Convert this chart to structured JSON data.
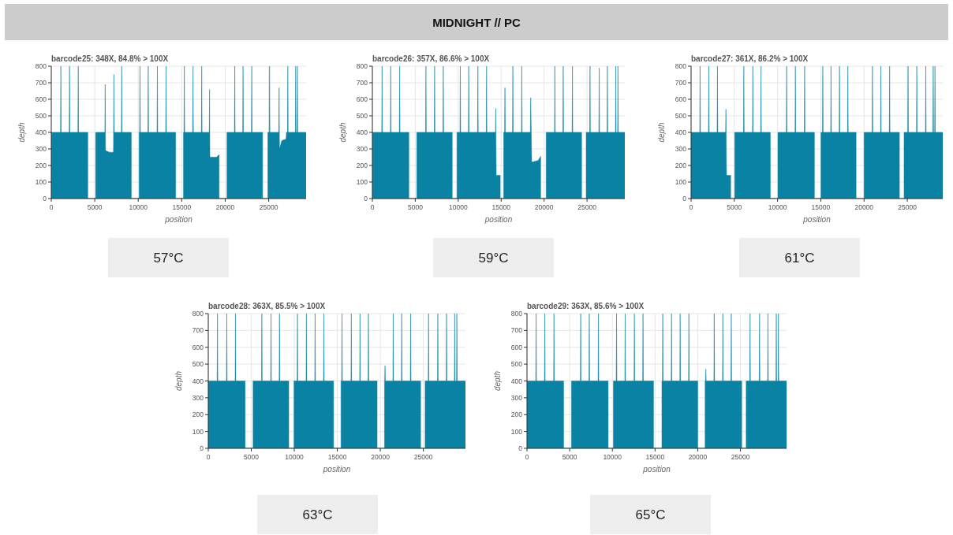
{
  "chart_data": [
    {
      "type": "other",
      "title": "MIDNIGHT // PC"
    },
    {
      "type": "area",
      "title": "barcode25: 348X, 84.8% > 100X",
      "xlabel": "position",
      "ylabel": "depth",
      "annotations": [
        "57°C"
      ],
      "color": "#0a82a3",
      "grid": true,
      "xlim": [
        0,
        29300
      ],
      "ylim": [
        0,
        800
      ],
      "xticks": [
        0,
        5000,
        10000,
        15000,
        20000,
        25000
      ],
      "yticks": [
        0,
        100,
        200,
        300,
        400,
        500,
        600,
        700,
        800
      ],
      "x": [
        0,
        1060,
        1100,
        1140,
        2060,
        2100,
        2140,
        3060,
        3100,
        3140,
        4200,
        4200,
        5100,
        5100,
        6160,
        6200,
        6240,
        6700,
        7150,
        7200,
        7240,
        8060,
        8100,
        8140,
        9200,
        9200,
        10100,
        10100,
        10160,
        10200,
        10240,
        11110,
        11150,
        11190,
        12160,
        12200,
        12240,
        13160,
        13200,
        13240,
        14300,
        14300,
        15200,
        15200,
        15260,
        15300,
        15340,
        16260,
        16300,
        16340,
        17260,
        17300,
        17340,
        18160,
        18200,
        18240,
        19000,
        19300,
        19300,
        20200,
        20200,
        21060,
        21100,
        21140,
        22010,
        22050,
        22090,
        23010,
        23050,
        23090,
        24300,
        24300,
        24900,
        24900,
        25060,
        25100,
        25140,
        26160,
        26200,
        26240,
        26500,
        27000,
        27040,
        27160,
        27200,
        27240,
        28060,
        28100,
        28140,
        28260,
        28300,
        28340,
        29300
      ],
      "values": [
        400,
        400,
        800,
        400,
        400,
        800,
        400,
        400,
        800,
        400,
        400,
        0,
        0,
        400,
        400,
        690,
        290,
        280,
        280,
        750,
        400,
        400,
        800,
        400,
        400,
        0,
        0,
        400,
        400,
        800,
        400,
        400,
        800,
        400,
        400,
        800,
        400,
        400,
        800,
        400,
        400,
        0,
        0,
        400,
        400,
        800,
        400,
        400,
        800,
        400,
        400,
        800,
        400,
        400,
        660,
        250,
        250,
        265,
        0,
        0,
        400,
        400,
        800,
        400,
        400,
        800,
        400,
        400,
        800,
        400,
        400,
        0,
        0,
        400,
        400,
        800,
        400,
        400,
        670,
        300,
        350,
        360,
        400,
        400,
        800,
        400,
        400,
        800,
        400,
        400,
        800,
        400,
        400
      ]
    },
    {
      "type": "area",
      "title": "barcode26: 357X, 86.6% > 100X",
      "xlabel": "position",
      "ylabel": "depth",
      "annotations": [
        "59°C"
      ],
      "color": "#0a82a3",
      "grid": true,
      "xlim": [
        0,
        29400
      ],
      "ylim": [
        0,
        800
      ],
      "xticks": [
        0,
        5000,
        10000,
        15000,
        20000,
        25000
      ],
      "yticks": [
        0,
        100,
        200,
        300,
        400,
        500,
        600,
        700,
        800
      ],
      "x": [
        0,
        1090,
        1130,
        1170,
        2100,
        2140,
        2180,
        3140,
        3180,
        3220,
        4250,
        4250,
        5170,
        5170,
        6200,
        6240,
        6280,
        7210,
        7250,
        7290,
        8220,
        8260,
        8300,
        9300,
        9300,
        9850,
        9850,
        10200,
        10240,
        10280,
        11180,
        11220,
        11260,
        12250,
        12290,
        12330,
        13260,
        13300,
        13340,
        14330,
        14370,
        14430,
        14890,
        14890,
        15290,
        15290,
        15400,
        15440,
        15480,
        16320,
        16360,
        16400,
        17360,
        17400,
        17440,
        18400,
        18440,
        18560,
        19300,
        19600,
        19600,
        20240,
        20240,
        21210,
        21250,
        21290,
        22190,
        22230,
        22270,
        23260,
        23300,
        23340,
        24370,
        24370,
        24900,
        24900,
        25310,
        25350,
        25390,
        26380,
        26420,
        26460,
        27330,
        27370,
        27410,
        28310,
        28350,
        28390,
        28560,
        28600,
        28640,
        29400
      ],
      "values": [
        400,
        400,
        800,
        400,
        400,
        800,
        400,
        400,
        800,
        400,
        400,
        0,
        0,
        400,
        400,
        800,
        400,
        400,
        800,
        400,
        400,
        800,
        400,
        400,
        0,
        0,
        400,
        400,
        800,
        400,
        400,
        800,
        400,
        400,
        800,
        400,
        400,
        800,
        400,
        400,
        545,
        140,
        140,
        0,
        0,
        400,
        400,
        670,
        400,
        400,
        800,
        400,
        400,
        800,
        400,
        400,
        610,
        220,
        230,
        255,
        0,
        0,
        400,
        400,
        800,
        400,
        400,
        800,
        400,
        400,
        800,
        400,
        400,
        0,
        0,
        400,
        400,
        800,
        400,
        400,
        790,
        400,
        400,
        800,
        400,
        400,
        800,
        400,
        400,
        800,
        400,
        400
      ]
    },
    {
      "type": "area",
      "title": "barcode27: 361X, 86.2% > 100X",
      "xlabel": "position",
      "ylabel": "depth",
      "annotations": [
        "61°C"
      ],
      "color": "#0a82a3",
      "grid": true,
      "xlim": [
        0,
        29100
      ],
      "ylim": [
        0,
        800
      ],
      "xticks": [
        0,
        5000,
        10000,
        15000,
        20000,
        25000
      ],
      "yticks": [
        0,
        100,
        200,
        300,
        400,
        500,
        600,
        700,
        800
      ],
      "x": [
        0,
        1000,
        1040,
        1080,
        2010,
        2050,
        2090,
        3010,
        3050,
        3090,
        3990,
        4030,
        4100,
        4580,
        4580,
        5040,
        5040,
        6060,
        6100,
        6140,
        7100,
        7140,
        7180,
        8050,
        8090,
        8130,
        9160,
        9160,
        10040,
        10040,
        11010,
        11050,
        11090,
        12020,
        12060,
        12100,
        13090,
        13130,
        13170,
        14260,
        14260,
        15020,
        15020,
        15190,
        15230,
        15270,
        16140,
        16180,
        16220,
        17120,
        17160,
        17200,
        18090,
        18130,
        18170,
        19080,
        19080,
        20000,
        20000,
        20930,
        20970,
        21010,
        21910,
        21950,
        21990,
        22920,
        22960,
        23000,
        24090,
        24090,
        24630,
        24630,
        25050,
        25090,
        25130,
        26060,
        26100,
        26140,
        27100,
        27140,
        27180,
        27960,
        28000,
        28040,
        28160,
        28200,
        28240,
        29100
      ],
      "values": [
        400,
        400,
        800,
        400,
        400,
        800,
        400,
        400,
        800,
        400,
        400,
        540,
        140,
        140,
        0,
        0,
        400,
        400,
        800,
        400,
        400,
        800,
        400,
        400,
        800,
        400,
        400,
        0,
        0,
        400,
        400,
        800,
        400,
        400,
        800,
        400,
        400,
        800,
        400,
        400,
        0,
        0,
        400,
        400,
        800,
        400,
        400,
        800,
        400,
        400,
        800,
        400,
        400,
        800,
        400,
        400,
        0,
        0,
        400,
        400,
        800,
        400,
        400,
        800,
        400,
        400,
        800,
        400,
        400,
        0,
        0,
        400,
        400,
        800,
        400,
        400,
        800,
        400,
        400,
        800,
        400,
        400,
        800,
        400,
        400,
        800,
        400,
        400
      ]
    },
    {
      "type": "area",
      "title": "barcode28: 363X, 85.5% > 100X",
      "xlabel": "position",
      "ylabel": "depth",
      "annotations": [
        "63°C"
      ],
      "color": "#0a82a3",
      "grid": true,
      "xlim": [
        0,
        29900
      ],
      "ylim": [
        0,
        800
      ],
      "xticks": [
        0,
        5000,
        10000,
        15000,
        20000,
        25000
      ],
      "yticks": [
        0,
        100,
        200,
        300,
        400,
        500,
        600,
        700,
        800
      ],
      "x": [
        0,
        1030,
        1070,
        1110,
        2110,
        2150,
        2190,
        3120,
        3160,
        3200,
        4290,
        4290,
        5210,
        5210,
        6190,
        6230,
        6270,
        7260,
        7300,
        7340,
        8240,
        8280,
        8320,
        9360,
        9360,
        9970,
        9970,
        10330,
        10370,
        10410,
        11370,
        11410,
        11450,
        12380,
        12420,
        12460,
        13400,
        13440,
        13480,
        14570,
        14570,
        15430,
        15430,
        15510,
        15550,
        15590,
        16590,
        16630,
        16670,
        17600,
        17640,
        17680,
        18580,
        18620,
        18660,
        19630,
        19630,
        20490,
        20490,
        20510,
        20550,
        20590,
        21460,
        21500,
        21540,
        22450,
        22490,
        22530,
        23490,
        23530,
        23570,
        24690,
        24690,
        25210,
        25210,
        25570,
        25610,
        25650,
        26650,
        26690,
        26730,
        27660,
        27700,
        27740,
        28610,
        28650,
        28690,
        28860,
        28900,
        28940,
        29900
      ],
      "values": [
        400,
        400,
        800,
        400,
        400,
        800,
        400,
        400,
        800,
        400,
        400,
        0,
        0,
        400,
        400,
        800,
        400,
        400,
        800,
        400,
        400,
        800,
        400,
        400,
        0,
        0,
        400,
        400,
        800,
        400,
        400,
        800,
        400,
        400,
        800,
        400,
        400,
        800,
        400,
        400,
        0,
        0,
        400,
        400,
        800,
        400,
        400,
        800,
        400,
        400,
        800,
        400,
        400,
        800,
        400,
        400,
        0,
        0,
        400,
        400,
        490,
        400,
        400,
        800,
        400,
        400,
        800,
        400,
        400,
        800,
        400,
        400,
        0,
        0,
        400,
        400,
        800,
        400,
        400,
        800,
        400,
        400,
        800,
        400,
        400,
        800,
        400,
        400,
        800,
        400,
        400
      ]
    },
    {
      "type": "area",
      "title": "barcode29: 363X, 85.6% > 100X",
      "xlabel": "position",
      "ylabel": "depth",
      "annotations": [
        "65°C"
      ],
      "color": "#0a82a3",
      "grid": true,
      "xlim": [
        0,
        30400
      ],
      "ylim": [
        0,
        800
      ],
      "xticks": [
        0,
        5000,
        10000,
        15000,
        20000,
        25000
      ],
      "yticks": [
        0,
        100,
        200,
        300,
        400,
        500,
        600,
        700,
        800
      ],
      "x": [
        0,
        1030,
        1070,
        1110,
        2050,
        2090,
        2130,
        3120,
        3160,
        3200,
        4290,
        4290,
        5210,
        5210,
        6250,
        6290,
        6330,
        7260,
        7300,
        7340,
        8330,
        8370,
        8410,
        9510,
        9510,
        10120,
        10120,
        10450,
        10490,
        10530,
        11460,
        11500,
        11540,
        12540,
        12580,
        12620,
        13550,
        13590,
        13630,
        14820,
        14820,
        15800,
        15800,
        15860,
        15900,
        15940,
        16890,
        16930,
        16970,
        17900,
        17940,
        17980,
        18920,
        18960,
        19000,
        20000,
        20000,
        20860,
        20860,
        20910,
        20950,
        20990,
        21890,
        21930,
        21970,
        22900,
        22940,
        22980,
        23890,
        23930,
        23970,
        25150,
        25150,
        25670,
        25670,
        26090,
        26130,
        26170,
        27200,
        27240,
        27280,
        28180,
        28220,
        28260,
        29160,
        29200,
        29240,
        29410,
        29450,
        29490,
        30400
      ],
      "values": [
        400,
        400,
        800,
        400,
        400,
        800,
        400,
        400,
        800,
        400,
        400,
        0,
        0,
        400,
        400,
        800,
        400,
        400,
        800,
        400,
        400,
        800,
        400,
        400,
        0,
        0,
        400,
        400,
        800,
        400,
        400,
        800,
        400,
        400,
        800,
        400,
        400,
        800,
        400,
        400,
        0,
        0,
        400,
        400,
        800,
        400,
        400,
        800,
        400,
        400,
        800,
        400,
        400,
        800,
        400,
        400,
        0,
        0,
        400,
        400,
        470,
        400,
        400,
        800,
        400,
        400,
        800,
        400,
        400,
        800,
        400,
        400,
        0,
        0,
        400,
        400,
        800,
        400,
        400,
        800,
        400,
        400,
        800,
        400,
        400,
        800,
        400,
        400,
        800,
        400,
        400
      ]
    }
  ]
}
